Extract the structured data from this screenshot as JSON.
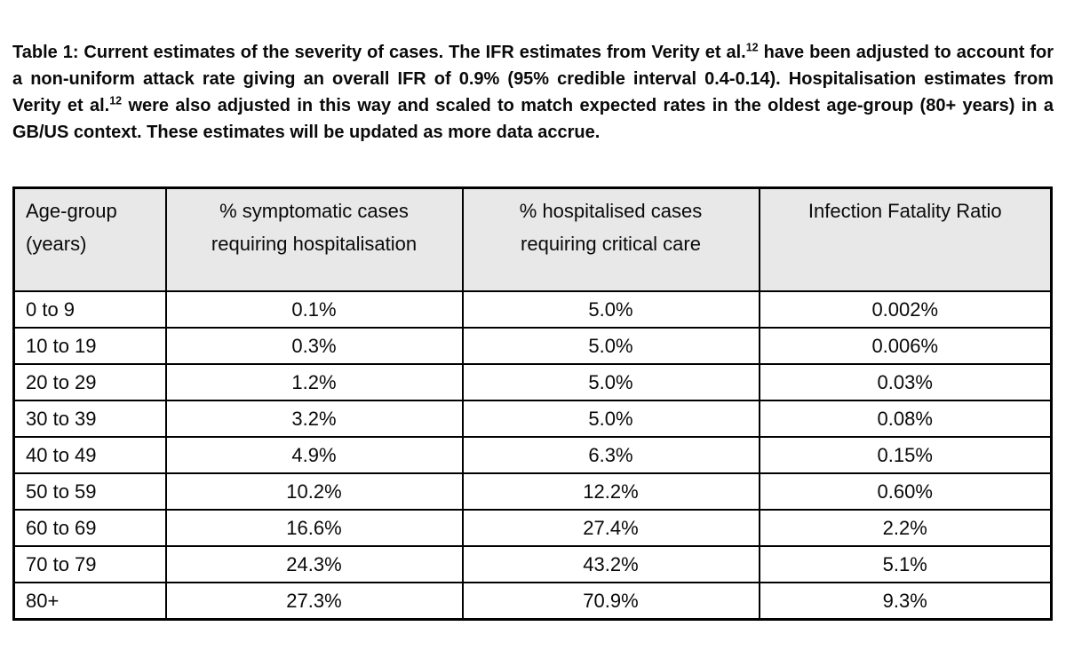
{
  "document": {
    "caption": {
      "parts": [
        {
          "text": "Table 1: Current estimates of the severity of cases. The IFR estimates from Verity et al."
        },
        {
          "sup": "12"
        },
        {
          "text": " have been adjusted to account for a non-uniform attack rate giving an overall IFR of 0.9% (95% credible interval 0.4-0.14). Hospitalisation estimates from Verity et al."
        },
        {
          "sup": "12"
        },
        {
          "text": " were also adjusted in this way and scaled to match expected rates in the oldest age-group (80+ years) in a GB/US context. These estimates will be updated as more data accrue."
        }
      ]
    },
    "table": {
      "columns": [
        "Age-group\n(years)",
        "% symptomatic cases\nrequiring hospitalisation",
        "% hospitalised cases\nrequiring critical care",
        "Infection Fatality Ratio"
      ],
      "rows": [
        [
          "0 to 9",
          "0.1%",
          "5.0%",
          "0.002%"
        ],
        [
          "10 to 19",
          "0.3%",
          "5.0%",
          "0.006%"
        ],
        [
          "20 to 29",
          "1.2%",
          "5.0%",
          "0.03%"
        ],
        [
          "30 to 39",
          "3.2%",
          "5.0%",
          "0.08%"
        ],
        [
          "40 to 49",
          "4.9%",
          "6.3%",
          "0.15%"
        ],
        [
          "50 to 59",
          "10.2%",
          "12.2%",
          "0.60%"
        ],
        [
          "60 to 69",
          "16.6%",
          "27.4%",
          "2.2%"
        ],
        [
          "70 to 79",
          "24.3%",
          "43.2%",
          "5.1%"
        ],
        [
          "80+",
          "27.3%",
          "70.9%",
          "9.3%"
        ]
      ],
      "colors": {
        "header_bg": "#e8e8e8",
        "border": "#000000",
        "text": "#0a0a0a",
        "page_bg": "#ffffff"
      }
    }
  }
}
